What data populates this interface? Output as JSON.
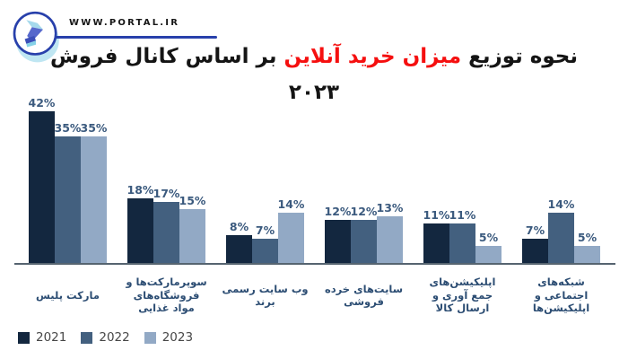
{
  "brand": {
    "url_text": "WWW.PORTAL.IR"
  },
  "title": {
    "prefix": "نحوه توزیع",
    "highlight": "میزان خرید آنلاین",
    "suffix": "بر اساس کانال فروش",
    "year": "۲۰۲۳"
  },
  "chart_data": {
    "type": "bar",
    "title": "نحوه توزیع میزان خرید آنلاین بر اساس کانال فروش ۲۰۲۳",
    "categories": [
      "مارکت پلیس",
      "سوپرمارکت‌ها و فروشگاه‌های مواد غذایی",
      "وب سایت رسمی برند",
      "سایت‌های خرده فروشی",
      "اپلیکیشن‌های جمع آوری و ارسال کالا",
      "شبکه‌های اجتماعی و اپلیکیشن‌ها"
    ],
    "categories_lines": [
      [
        "مارکت پلیس"
      ],
      [
        "سوپرمارکت‌ها و",
        "فروشگاه‌های",
        "مواد غذایی"
      ],
      [
        "وب سایت رسمی",
        "برند"
      ],
      [
        "سایت‌های خرده",
        "فروشی"
      ],
      [
        "اپلیکیشن‌های",
        "جمع آوری و",
        "ارسال کالا"
      ],
      [
        "شبکه‌های",
        "اجتماعی و",
        "اپلیکیشن‌ها"
      ]
    ],
    "series": [
      {
        "name": "2021",
        "color": "#13273f",
        "values": [
          42,
          18,
          8,
          12,
          11,
          7
        ]
      },
      {
        "name": "2022",
        "color": "#43607f",
        "values": [
          35,
          17,
          7,
          12,
          11,
          14
        ]
      },
      {
        "name": "2023",
        "color": "#92a9c5",
        "values": [
          35,
          15,
          14,
          13,
          5,
          5
        ]
      }
    ],
    "value_suffix": "%",
    "xlabel": "",
    "ylabel": "",
    "ylim": [
      0,
      45
    ],
    "grid": false,
    "legend_position": "bottom-left"
  },
  "ui_colors": {
    "title_black": "#141414",
    "title_red": "#f50f0f",
    "value_label": "#3b5a7e",
    "category_label": "#2c4d73",
    "legend_text": "#474747",
    "axis_line": "#566470",
    "brand_blue": "#2840ab",
    "brand_text": "#161616",
    "logo_light": "#a5d9ec",
    "logo_mid": "#5668cc",
    "logo_dark": "#3b4fb8",
    "logo_teal": "#86d2e8",
    "logo_shadow": "#bfe6f2",
    "background": "#ffffff"
  }
}
